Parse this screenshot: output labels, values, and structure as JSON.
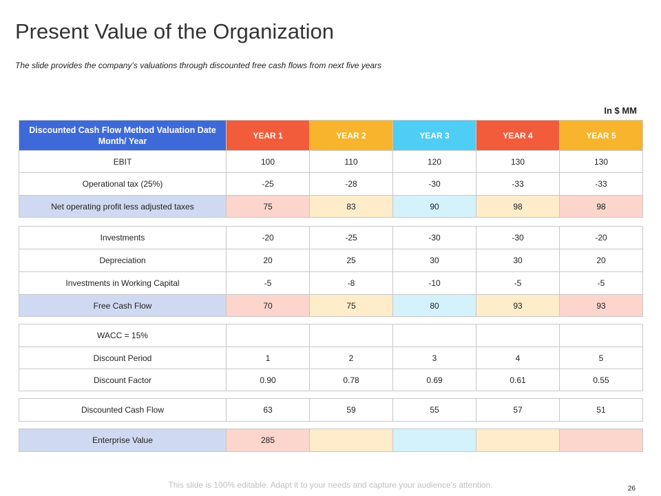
{
  "title": "Present Value of the Organization",
  "subtitle": "The slide provides the company’s valuations through discounted free cash flows from next five years",
  "unit": "In $ MM",
  "header": {
    "label": "Discounted Cash Flow Method Valuation Date Month/ Year",
    "years": [
      "YEAR 1",
      "YEAR 2",
      "YEAR 3",
      "YEAR 4",
      "YEAR 5"
    ]
  },
  "colors": {
    "header_label": "#3d6ad8",
    "year1": "#f25c3b",
    "year2": "#f7b42c",
    "year3": "#4ecdf5",
    "year4": "#f25c3b",
    "year5": "#f7b42c"
  },
  "group1": [
    {
      "label": "EBIT",
      "values": [
        "100",
        "110",
        "120",
        "130",
        "130"
      ]
    },
    {
      "label": "Operational tax (25%)",
      "values": [
        "-25",
        "-28",
        "-30",
        "-33",
        "-33"
      ]
    },
    {
      "label": "Net operating profit less adjusted taxes",
      "values": [
        "75",
        "83",
        "90",
        "98",
        "98"
      ]
    }
  ],
  "group2": [
    {
      "label": "Investments",
      "values": [
        "-20",
        "-25",
        "-30",
        "-30",
        "-20"
      ]
    },
    {
      "label": "Depreciation",
      "values": [
        "20",
        "25",
        "30",
        "30",
        "20"
      ]
    },
    {
      "label": "Investments  in Working Capital",
      "values": [
        "-5",
        "-8",
        "-10",
        "-5",
        "-5"
      ]
    },
    {
      "label": "Free Cash Flow",
      "values": [
        "70",
        "75",
        "80",
        "93",
        "93"
      ]
    }
  ],
  "group3": [
    {
      "label": "WACC = 15%",
      "values": [
        "",
        "",
        "",
        "",
        ""
      ]
    },
    {
      "label": "Discount Period",
      "values": [
        "1",
        "2",
        "3",
        "4",
        "5"
      ]
    },
    {
      "label": "Discount Factor",
      "values": [
        "0.90",
        "0.78",
        "0.69",
        "0.61",
        "0.55"
      ]
    }
  ],
  "group4": [
    {
      "label": "Discounted Cash Flow",
      "values": [
        "63",
        "59",
        "55",
        "57",
        "51"
      ]
    }
  ],
  "group5": [
    {
      "label": "Enterprise Value",
      "values": [
        "285",
        "",
        "",
        "",
        ""
      ]
    }
  ],
  "footer": "This slide is 100% editable. Adapt it to your needs and capture your audience's attention.",
  "page_number": "26"
}
